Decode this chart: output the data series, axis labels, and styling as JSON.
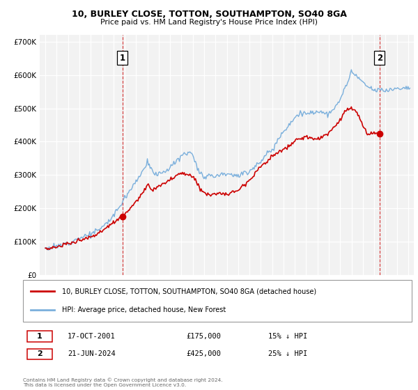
{
  "title": "10, BURLEY CLOSE, TOTTON, SOUTHAMPTON, SO40 8GA",
  "subtitle": "Price paid vs. HM Land Registry's House Price Index (HPI)",
  "legend_label_red": "10, BURLEY CLOSE, TOTTON, SOUTHAMPTON, SO40 8GA (detached house)",
  "legend_label_blue": "HPI: Average price, detached house, New Forest",
  "point1_label": "1",
  "point1_date": "17-OCT-2001",
  "point1_price": "£175,000",
  "point1_hpi": "15% ↓ HPI",
  "point1_year": 2001.79,
  "point1_value": 175000,
  "point2_label": "2",
  "point2_date": "21-JUN-2024",
  "point2_price": "£425,000",
  "point2_hpi": "25% ↓ HPI",
  "point2_year": 2024.47,
  "point2_value": 425000,
  "ylim_min": 0,
  "ylim_max": 720000,
  "xlim_min": 1994.5,
  "xlim_max": 2027.5,
  "copyright": "Contains HM Land Registry data © Crown copyright and database right 2024.\nThis data is licensed under the Open Government Licence v3.0.",
  "background_color": "#ffffff",
  "plot_bg_color": "#f2f2f2",
  "red_color": "#cc0000",
  "blue_color": "#7aafdc",
  "grid_color": "#ffffff",
  "point_marker_color": "#cc0000"
}
